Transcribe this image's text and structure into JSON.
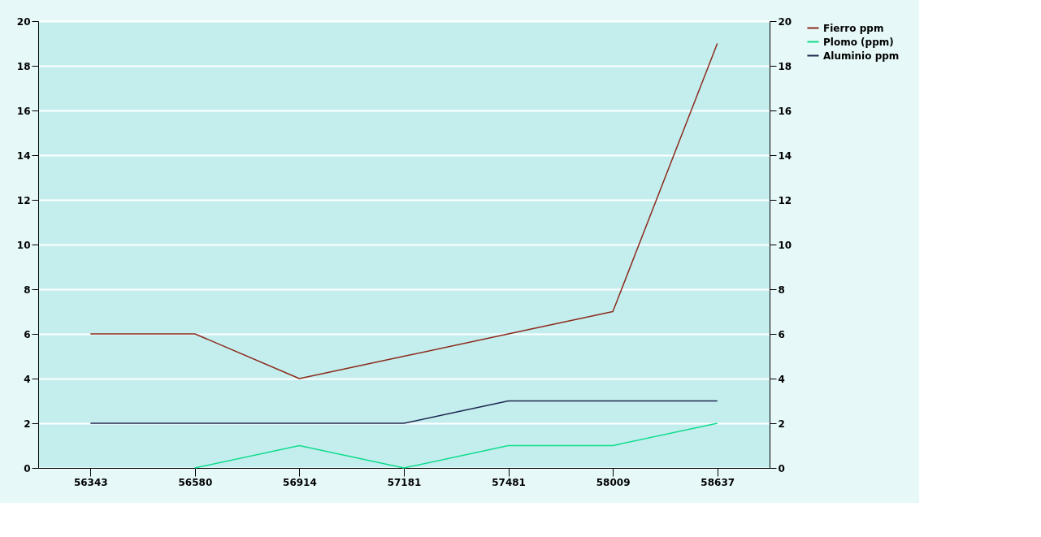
{
  "chart_data": {
    "type": "line",
    "categories": [
      "56343",
      "56580",
      "56914",
      "57181",
      "57481",
      "58009",
      "58637"
    ],
    "series": [
      {
        "name": "Fierro ppm",
        "color": "#8b2b1c",
        "values": [
          6,
          6,
          4,
          5,
          6,
          7,
          19
        ]
      },
      {
        "name": "Plomo (ppm)",
        "color": "#10dc8c",
        "values": [
          null,
          0,
          1,
          0,
          1,
          1,
          2
        ]
      },
      {
        "name": "Aluminio  ppm",
        "color": "#1c2850",
        "values": [
          2,
          2,
          2,
          2,
          3,
          3,
          3
        ]
      }
    ],
    "ylim": [
      0,
      20
    ],
    "yticks": [
      0,
      2,
      4,
      6,
      8,
      10,
      12,
      14,
      16,
      18,
      20
    ],
    "y2lim": [
      0,
      20
    ],
    "y2ticks": [
      0,
      2,
      4,
      6,
      8,
      10,
      12,
      14,
      16,
      18,
      20
    ],
    "grid": "y",
    "legend": "right",
    "marker": "none",
    "line_style": "solid"
  }
}
